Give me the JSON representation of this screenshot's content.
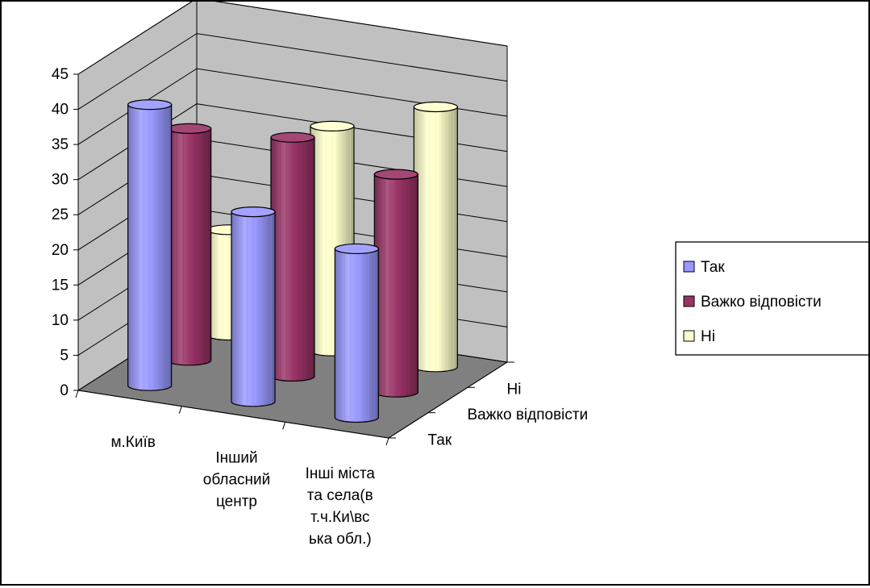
{
  "chart_data": {
    "type": "bar",
    "subtype": "3d-cylinder",
    "title": "",
    "categories": [
      "м.Київ",
      "Інший обласний центр",
      "Інші міста та села(в т.ч.Ки\\вська обл.)"
    ],
    "category_lines": [
      [
        "м.Київ"
      ],
      [
        "Інший",
        "обласний",
        "центр"
      ],
      [
        "Інші міста",
        "та села(в",
        "т.ч.Ки\\вс",
        "ька обл.)"
      ]
    ],
    "series": [
      {
        "name": "Так",
        "values": [
          40,
          27,
          24
        ],
        "color": "#9999ff"
      },
      {
        "name": "Важко відповісти",
        "values": [
          33,
          34,
          31
        ],
        "color": "#993366"
      },
      {
        "name": "Ні",
        "values": [
          15,
          32,
          37
        ],
        "color": "#ffffcc"
      }
    ],
    "depth_labels": [
      "Так",
      "Важко відповісти",
      "Ні"
    ],
    "yticks": [
      0,
      5,
      10,
      15,
      20,
      25,
      30,
      35,
      40,
      45
    ],
    "ylim": [
      0,
      45
    ],
    "grid": true,
    "legend": {
      "position": "right",
      "entries": [
        "Так",
        "Важко відповісти",
        "Ні"
      ]
    },
    "colors": {
      "wall": "#c0c0c0",
      "floor": "#808080",
      "background": "#ffffff"
    }
  }
}
